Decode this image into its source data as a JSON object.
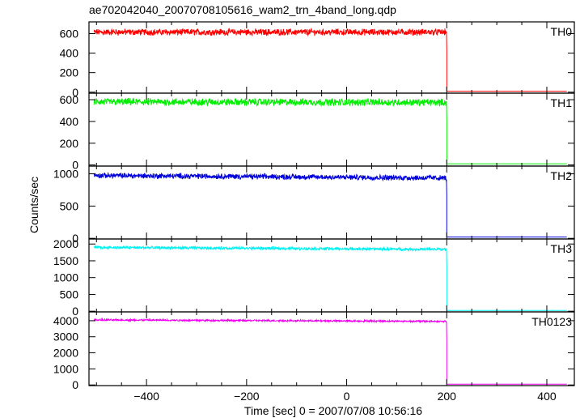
{
  "chart_data": {
    "type": "line",
    "title": "ae702042040_20070708105616_wam2_trn_4band_long.qdp",
    "xlabel": "Time [sec] 0 = 2007/07/08 10:56:16",
    "ylabel": "Counts/sec",
    "xlim": [
      -515,
      455
    ],
    "x_ticks": [
      -400,
      -200,
      0,
      200,
      400
    ],
    "x_tick_labels": [
      "−400",
      "−200",
      "0",
      "200",
      "400"
    ],
    "cutoff_time": 200,
    "data_range": [
      -505,
      440
    ],
    "series": [
      {
        "name": "TH0",
        "color": "#ff0000",
        "ylim": [
          -10,
          720
        ],
        "y_ticks": [
          0,
          200,
          400,
          600
        ],
        "before_level": 615,
        "noise": 55,
        "after_level": 10,
        "trend": 0
      },
      {
        "name": "TH1",
        "color": "#00ee00",
        "ylim": [
          -10,
          660
        ],
        "y_ticks": [
          0,
          200,
          400,
          600
        ],
        "before_level": 580,
        "noise": 55,
        "after_level": 10,
        "trend": -5
      },
      {
        "name": "TH2",
        "color": "#0000dd",
        "ylim": [
          -10,
          1120
        ],
        "y_ticks": [
          0,
          500,
          1000
        ],
        "before_level": 975,
        "noise": 70,
        "after_level": 20,
        "trend": -40
      },
      {
        "name": "TH3",
        "color": "#00f0f0",
        "ylim": [
          -20,
          2150
        ],
        "y_ticks": [
          0,
          500,
          1000,
          1500,
          2000
        ],
        "before_level": 1900,
        "noise": 70,
        "after_level": 20,
        "trend": -60
      },
      {
        "name": "TH0123",
        "color": "#ee00ee",
        "ylim": [
          -40,
          4550
        ],
        "y_ticks": [
          0,
          1000,
          2000,
          3000,
          4000
        ],
        "before_level": 4050,
        "noise": 90,
        "after_level": 50,
        "trend": -90
      }
    ]
  }
}
